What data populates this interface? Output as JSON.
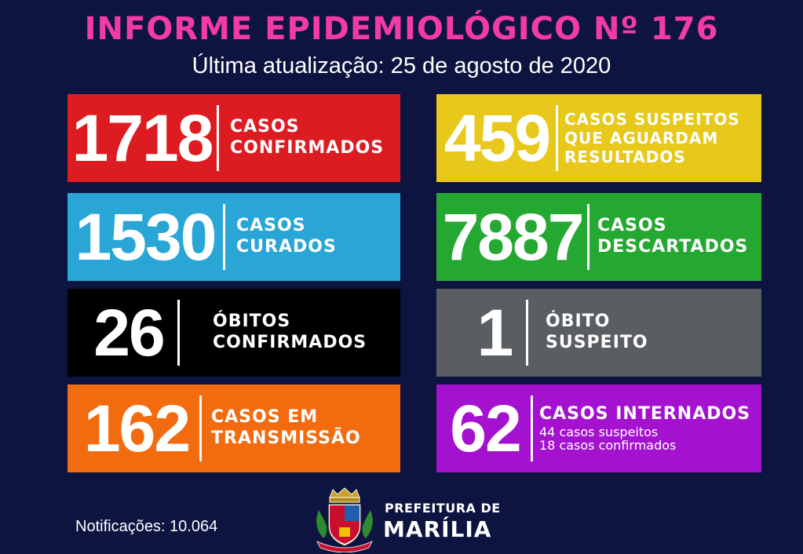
{
  "header": {
    "title": "INFORME EPIDEMIOLÓGICO Nº 176",
    "subtitle": "Última atualização: 25 de agosto de 2020"
  },
  "cards": [
    {
      "value": "1718",
      "lines": [
        "CASOS",
        "CONFIRMADOS"
      ],
      "color": "#dd1c22"
    },
    {
      "value": "459",
      "lines": [
        "CASOS SUSPEITOS",
        "QUE AGUARDAM",
        "RESULTADOS"
      ],
      "color": "#e8c81a"
    },
    {
      "value": "1530",
      "lines": [
        "CASOS",
        "CURADOS"
      ],
      "color": "#29a6d6"
    },
    {
      "value": "7887",
      "lines": [
        "CASOS",
        "DESCARTADOS"
      ],
      "color": "#25a832"
    },
    {
      "value": "26",
      "lines": [
        "ÓBITOS",
        "CONFIRMADOS"
      ],
      "color": "#000000"
    },
    {
      "value": "1",
      "lines": [
        "ÓBITO",
        "SUSPEITO"
      ],
      "color": "#5a5e62"
    },
    {
      "value": "162",
      "lines": [
        "CASOS EM",
        "TRANSMISSÃO"
      ],
      "color": "#f26b0f"
    },
    {
      "value": "62",
      "lines": [
        "CASOS INTERNADOS"
      ],
      "sub_lines": [
        "44 casos suspeitos",
        "18 casos confirmados"
      ],
      "color": "#a412cf"
    }
  ],
  "footer": {
    "notifications": "Notificações: 10.064",
    "prefeitura_line1": "PREFEITURA DE",
    "prefeitura_line2": "MARÍLIA"
  }
}
